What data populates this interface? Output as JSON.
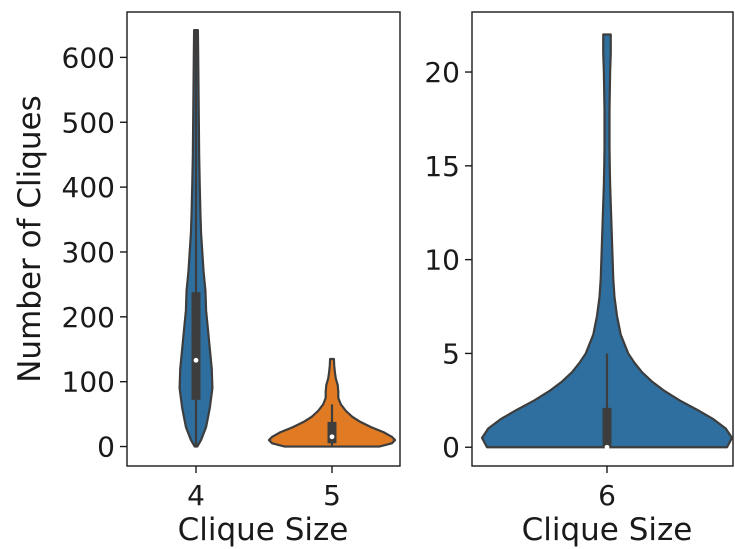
{
  "chart_data": [
    {
      "type": "violin",
      "xlabel": "Clique Size",
      "ylabel": "Number of Cliques",
      "ylim": [
        -30,
        670
      ],
      "yticks": [
        0,
        100,
        200,
        300,
        400,
        500,
        600
      ],
      "categories": [
        "4",
        "5"
      ],
      "series": [
        {
          "category": "4",
          "color": "#2f6f9f",
          "min": 0,
          "max": 642,
          "q1": 72,
          "median": 133,
          "q3": 238,
          "whisker_low": 0,
          "whisker_high": 642,
          "density_profile": [
            [
              0,
              0.02
            ],
            [
              10,
              0.08
            ],
            [
              30,
              0.16
            ],
            [
              60,
              0.22
            ],
            [
              90,
              0.26
            ],
            [
              120,
              0.25
            ],
            [
              150,
              0.22
            ],
            [
              180,
              0.19
            ],
            [
              210,
              0.16
            ],
            [
              240,
              0.15
            ],
            [
              270,
              0.12
            ],
            [
              300,
              0.1
            ],
            [
              330,
              0.08
            ],
            [
              360,
              0.07
            ],
            [
              400,
              0.06
            ],
            [
              450,
              0.05
            ],
            [
              500,
              0.045
            ],
            [
              550,
              0.04
            ],
            [
              600,
              0.035
            ],
            [
              642,
              0.03
            ]
          ]
        },
        {
          "category": "5",
          "color": "#e07b24",
          "min": 0,
          "max": 135,
          "q1": 5,
          "median": 15,
          "q3": 38,
          "whisker_low": 0,
          "whisker_high": 65,
          "density_profile": [
            [
              0,
              0.75
            ],
            [
              5,
              0.95
            ],
            [
              10,
              1.0
            ],
            [
              15,
              0.95
            ],
            [
              22,
              0.82
            ],
            [
              30,
              0.62
            ],
            [
              38,
              0.45
            ],
            [
              46,
              0.32
            ],
            [
              55,
              0.22
            ],
            [
              65,
              0.14
            ],
            [
              75,
              0.1
            ],
            [
              85,
              0.1
            ],
            [
              95,
              0.09
            ],
            [
              105,
              0.06
            ],
            [
              115,
              0.045
            ],
            [
              125,
              0.035
            ],
            [
              135,
              0.03
            ]
          ]
        }
      ]
    },
    {
      "type": "violin",
      "xlabel": "Clique Size",
      "ylabel": "",
      "ylim": [
        -1,
        23.2
      ],
      "yticks": [
        0,
        5,
        10,
        15,
        20
      ],
      "categories": [
        "6"
      ],
      "series": [
        {
          "category": "6",
          "color": "#2f6f9f",
          "min": 0,
          "max": 22,
          "q1": 0,
          "median": 0,
          "q3": 2.1,
          "whisker_low": 0,
          "whisker_high": 5,
          "density_profile": [
            [
              0,
              0.96
            ],
            [
              0.5,
              1.0
            ],
            [
              1,
              0.95
            ],
            [
              1.5,
              0.85
            ],
            [
              2,
              0.72
            ],
            [
              2.5,
              0.58
            ],
            [
              3,
              0.46
            ],
            [
              3.5,
              0.36
            ],
            [
              4,
              0.28
            ],
            [
              4.5,
              0.22
            ],
            [
              5,
              0.17
            ],
            [
              6,
              0.11
            ],
            [
              7,
              0.08
            ],
            [
              8,
              0.06
            ],
            [
              9,
              0.05
            ],
            [
              10,
              0.045
            ],
            [
              11,
              0.04
            ],
            [
              12,
              0.035
            ],
            [
              13,
              0.03
            ],
            [
              14,
              0.025
            ],
            [
              15,
              0.022
            ],
            [
              16,
              0.02
            ],
            [
              18,
              0.02
            ],
            [
              20,
              0.025
            ],
            [
              21,
              0.03
            ],
            [
              22,
              0.03
            ]
          ]
        }
      ]
    }
  ]
}
